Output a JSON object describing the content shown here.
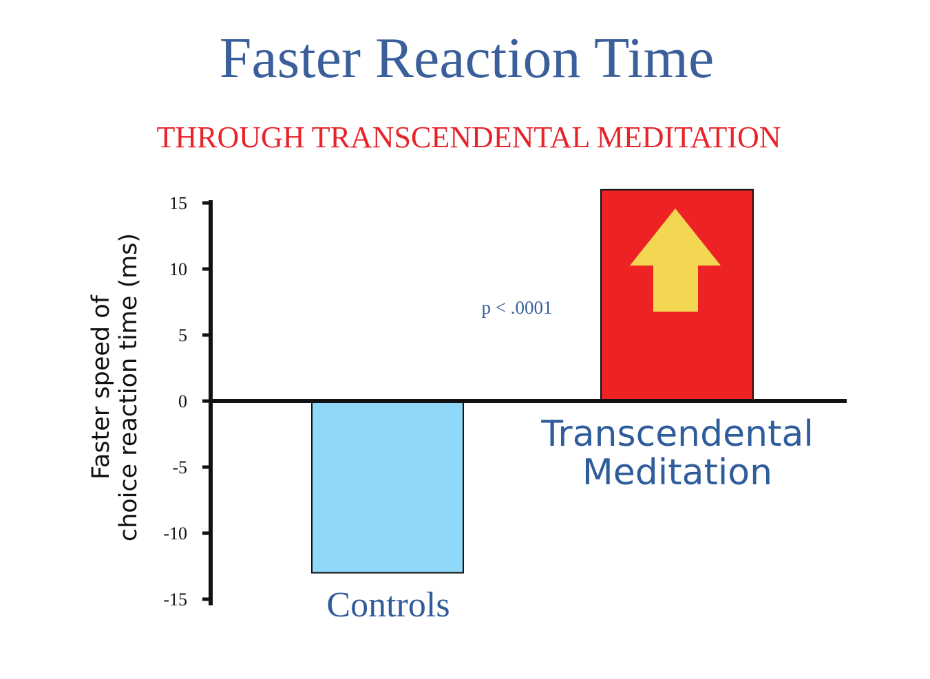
{
  "chart_data": {
    "type": "bar",
    "title": "Faster Reaction Time",
    "subtitle": "THROUGH TRANSCENDENTAL MEDITATION",
    "ylabel": [
      "Faster speed of",
      "choice reaction time (ms)"
    ],
    "xlabel": "",
    "categories": [
      "Controls",
      "Transcendental Meditation"
    ],
    "category_label_lines": [
      [
        "Controls"
      ],
      [
        "Transcendental",
        "Meditation"
      ]
    ],
    "values": [
      -13,
      16
    ],
    "ylim": [
      -15,
      16
    ],
    "yticks": [
      15,
      10,
      5,
      0,
      -5,
      -10,
      -15
    ],
    "ytick_labels": [
      "15",
      "10",
      "5",
      "0",
      "-5",
      "-10",
      "-15"
    ],
    "annotation": "p < .0001",
    "grid": false,
    "legend": "none",
    "colors": {
      "title": "#3a5f9a",
      "subtitle": "#e8242b",
      "category_label": "#2f5c9a",
      "bar_controls": "#8fd8f7",
      "bar_tm": "#ed2224",
      "arrow": "#f3d752",
      "axis": "#111111"
    },
    "icons": {
      "tm_bar": "up-arrow-icon"
    }
  }
}
